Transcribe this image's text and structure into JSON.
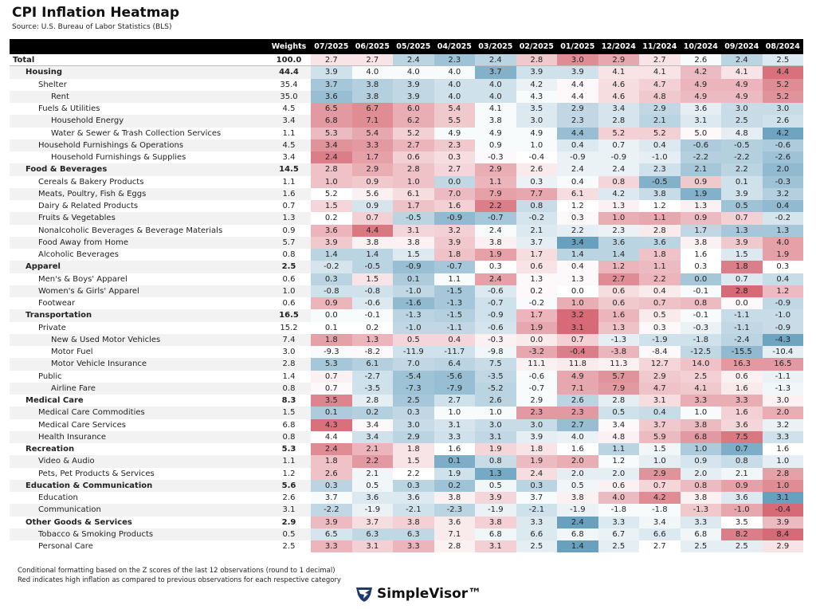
{
  "header": {
    "title": "CPI Inflation Heatmap",
    "source": "Source: U.S. Bureau of Labor Statistics (BLS)"
  },
  "table": {
    "columns": [
      "Weights",
      "07/2025",
      "06/2025",
      "05/2025",
      "04/2025",
      "03/2025",
      "02/2025",
      "01/2025",
      "12/2024",
      "11/2024",
      "10/2024",
      "09/2024",
      "08/2024"
    ],
    "rows": [
      [
        "Total",
        "100.0",
        "2.7",
        "2.7",
        "2.4",
        "2.3",
        "2.4",
        "2.8",
        "3.0",
        "2.9",
        "2.7",
        "2.6",
        "2.4",
        "2.5"
      ],
      [
        "Housing",
        "44.4",
        "3.9",
        "4.0",
        "4.0",
        "4.0",
        "3.7",
        "3.9",
        "3.9",
        "4.1",
        "4.1",
        "4.2",
        "4.1",
        "4.4"
      ],
      [
        "Shelter",
        "35.4",
        "3.7",
        "3.8",
        "3.9",
        "4.0",
        "4.0",
        "4.2",
        "4.4",
        "4.6",
        "4.7",
        "4.9",
        "4.9",
        "5.2"
      ],
      [
        "Rent",
        "35.0",
        "3.6",
        "3.8",
        "3.9",
        "4.0",
        "4.0",
        "4.3",
        "4.4",
        "4.6",
        "4.8",
        "4.9",
        "4.9",
        "5.2"
      ],
      [
        "Fuels & Utilities",
        "4.5",
        "6.5",
        "6.7",
        "6.0",
        "5.4",
        "4.1",
        "3.5",
        "2.9",
        "3.4",
        "2.9",
        "3.6",
        "3.0",
        "3.0"
      ],
      [
        "Household Energy",
        "3.4",
        "6.8",
        "7.1",
        "6.2",
        "5.5",
        "3.8",
        "3.0",
        "2.3",
        "2.8",
        "2.1",
        "3.1",
        "2.5",
        "2.6"
      ],
      [
        "Water & Sewer & Trash Collection Services",
        "1.1",
        "5.3",
        "5.4",
        "5.2",
        "4.9",
        "4.9",
        "4.9",
        "4.4",
        "5.2",
        "5.2",
        "5.0",
        "4.8",
        "4.2"
      ],
      [
        "Household Furnishings & Operations",
        "4.5",
        "3.4",
        "3.3",
        "2.7",
        "2.3",
        "0.9",
        "1.0",
        "0.4",
        "0.7",
        "0.4",
        "-0.6",
        "-0.5",
        "-0.6"
      ],
      [
        "Household Furnishings & Supplies",
        "3.4",
        "2.4",
        "1.7",
        "0.6",
        "0.3",
        "-0.3",
        "-0.4",
        "-0.9",
        "-0.9",
        "-1.0",
        "-2.2",
        "-2.2",
        "-2.6"
      ],
      [
        "Food & Beverages",
        "14.5",
        "2.8",
        "2.9",
        "2.8",
        "2.7",
        "2.9",
        "2.6",
        "2.4",
        "2.4",
        "2.3",
        "2.1",
        "2.2",
        "2.0"
      ],
      [
        "Cereals & Bakery Products",
        "1.1",
        "1.0",
        "0.9",
        "1.0",
        "0.0",
        "1.1",
        "0.3",
        "0.4",
        "0.8",
        "-0.5",
        "0.9",
        "0.1",
        "-0.3"
      ],
      [
        "Meats, Poultry, Fish & Eggs",
        "1.6",
        "5.2",
        "5.6",
        "6.1",
        "7.0",
        "7.9",
        "7.7",
        "6.1",
        "4.2",
        "3.8",
        "1.9",
        "3.9",
        "3.2"
      ],
      [
        "Dairy & Related Products",
        "0.7",
        "1.5",
        "0.9",
        "1.7",
        "1.6",
        "2.2",
        "0.8",
        "1.2",
        "1.3",
        "1.2",
        "1.3",
        "0.5",
        "0.4"
      ],
      [
        "Fruits & Vegetables",
        "1.3",
        "0.2",
        "0.7",
        "-0.5",
        "-0.9",
        "-0.7",
        "-0.2",
        "0.3",
        "1.0",
        "1.1",
        "0.9",
        "0.7",
        "-0.2"
      ],
      [
        "Nonalcoholic Beverages & Beverage Materials",
        "0.9",
        "3.6",
        "4.4",
        "3.1",
        "3.2",
        "2.4",
        "2.1",
        "2.2",
        "2.3",
        "2.8",
        "1.7",
        "1.3",
        "1.3"
      ],
      [
        "Food Away from Home",
        "5.7",
        "3.9",
        "3.8",
        "3.8",
        "3.9",
        "3.8",
        "3.7",
        "3.4",
        "3.6",
        "3.6",
        "3.8",
        "3.9",
        "4.0"
      ],
      [
        "Alcoholic Beverages",
        "0.8",
        "1.4",
        "1.4",
        "1.5",
        "1.8",
        "1.9",
        "1.7",
        "1.4",
        "1.4",
        "1.8",
        "1.6",
        "1.5",
        "1.9"
      ],
      [
        "Apparel",
        "2.5",
        "-0.2",
        "-0.5",
        "-0.9",
        "-0.7",
        "0.3",
        "0.6",
        "0.4",
        "1.2",
        "1.1",
        "0.3",
        "1.8",
        "0.3"
      ],
      [
        "Men's & Boys' Apparel",
        "0.6",
        "0.3",
        "1.5",
        "0.1",
        "1.1",
        "2.4",
        "1.3",
        "1.3",
        "2.7",
        "2.2",
        "0.0",
        "0.7",
        "0.4"
      ],
      [
        "Women's & Girls' Apparel",
        "1.0",
        "-0.8",
        "-0.8",
        "-1.0",
        "-1.5",
        "-0.6",
        "0.2",
        "0.0",
        "0.6",
        "0.4",
        "-0.1",
        "2.8",
        "1.2"
      ],
      [
        "Footwear",
        "0.6",
        "0.9",
        "-0.6",
        "-1.6",
        "-1.3",
        "-0.7",
        "-0.2",
        "1.0",
        "0.6",
        "0.7",
        "0.8",
        "0.0",
        "-0.9"
      ],
      [
        "Transportation",
        "16.5",
        "0.0",
        "-0.1",
        "-1.3",
        "-1.5",
        "-0.9",
        "1.7",
        "3.2",
        "1.6",
        "0.5",
        "-0.1",
        "-1.1",
        "-1.0"
      ],
      [
        "Private",
        "15.2",
        "0.1",
        "0.2",
        "-1.0",
        "-1.1",
        "-0.6",
        "1.9",
        "3.1",
        "1.3",
        "0.3",
        "-0.3",
        "-1.1",
        "-0.9"
      ],
      [
        "New & Used Motor Vehicles",
        "7.4",
        "1.8",
        "1.3",
        "0.5",
        "0.4",
        "-0.3",
        "0.0",
        "0.7",
        "-1.3",
        "-1.9",
        "-1.8",
        "-2.4",
        "-4.3"
      ],
      [
        "Motor Fuel",
        "3.0",
        "-9.3",
        "-8.2",
        "-11.9",
        "-11.7",
        "-9.8",
        "-3.2",
        "-0.4",
        "-3.8",
        "-8.4",
        "-12.5",
        "-15.5",
        "-10.4"
      ],
      [
        "Motor Vehicle Insurance",
        "2.8",
        "5.3",
        "6.1",
        "7.0",
        "6.4",
        "7.5",
        "11.1",
        "11.8",
        "11.3",
        "12.7",
        "14.0",
        "16.3",
        "16.5"
      ],
      [
        "Public",
        "1.4",
        "0.7",
        "-2.7",
        "-5.4",
        "-5.6",
        "-3.5",
        "-0.6",
        "4.9",
        "5.7",
        "2.9",
        "2.5",
        "0.6",
        "-1.1"
      ],
      [
        "Airline Fare",
        "0.8",
        "0.7",
        "-3.5",
        "-7.3",
        "-7.9",
        "-5.2",
        "-0.7",
        "7.1",
        "7.9",
        "4.7",
        "4.1",
        "1.6",
        "-1.3"
      ],
      [
        "Medical Care",
        "8.3",
        "3.5",
        "2.8",
        "2.5",
        "2.7",
        "2.6",
        "2.9",
        "2.6",
        "2.8",
        "3.1",
        "3.3",
        "3.3",
        "3.0"
      ],
      [
        "Medical Care Commodities",
        "1.5",
        "0.1",
        "0.2",
        "0.3",
        "1.0",
        "1.0",
        "2.3",
        "2.3",
        "0.5",
        "0.4",
        "1.0",
        "1.6",
        "2.0"
      ],
      [
        "Medical Care Services",
        "6.8",
        "4.3",
        "3.4",
        "3.0",
        "3.1",
        "3.0",
        "3.0",
        "2.7",
        "3.4",
        "3.7",
        "3.8",
        "3.6",
        "3.2"
      ],
      [
        "Health Insurance",
        "0.8",
        "4.4",
        "3.4",
        "2.9",
        "3.3",
        "3.1",
        "3.9",
        "4.0",
        "4.8",
        "5.9",
        "6.8",
        "7.5",
        "3.3"
      ],
      [
        "Recreation",
        "5.3",
        "2.4",
        "2.1",
        "1.8",
        "1.6",
        "1.9",
        "1.8",
        "1.6",
        "1.1",
        "1.5",
        "1.0",
        "0.7",
        "1.6"
      ],
      [
        "Video & Audio",
        "1.1",
        "1.8",
        "2.2",
        "1.5",
        "0.1",
        "0.8",
        "1.9",
        "2.0",
        "1.2",
        "1.0",
        "0.9",
        "0.8",
        "1.0"
      ],
      [
        "Pets, Pet Products & Services",
        "1.2",
        "2.6",
        "2.1",
        "2.2",
        "1.9",
        "1.3",
        "2.4",
        "2.0",
        "2.0",
        "2.9",
        "2.0",
        "2.1",
        "2.8"
      ],
      [
        "Education & Communication",
        "5.6",
        "0.3",
        "0.5",
        "0.3",
        "0.2",
        "0.5",
        "0.3",
        "0.5",
        "0.6",
        "0.7",
        "0.8",
        "0.9",
        "1.0"
      ],
      [
        "Education",
        "2.6",
        "3.7",
        "3.6",
        "3.6",
        "3.8",
        "3.9",
        "3.7",
        "3.8",
        "4.0",
        "4.2",
        "3.8",
        "3.6",
        "3.1"
      ],
      [
        "Communication",
        "3.1",
        "-2.2",
        "-1.9",
        "-2.1",
        "-2.3",
        "-1.9",
        "-2.1",
        "-1.9",
        "-1.8",
        "-1.8",
        "-1.3",
        "-1.0",
        "-0.4"
      ],
      [
        "Other Goods & Services",
        "2.9",
        "3.9",
        "3.7",
        "3.8",
        "3.6",
        "3.8",
        "3.3",
        "2.4",
        "3.3",
        "3.4",
        "3.3",
        "3.5",
        "3.9"
      ],
      [
        "Tobacco & Smoking Products",
        "0.5",
        "6.5",
        "6.3",
        "6.3",
        "7.1",
        "6.8",
        "6.6",
        "6.8",
        "6.7",
        "6.6",
        "6.8",
        "8.2",
        "8.4"
      ],
      [
        "Personal Care",
        "2.5",
        "3.3",
        "3.1",
        "3.3",
        "2.8",
        "3.1",
        "2.5",
        "1.4",
        "2.5",
        "2.7",
        "2.5",
        "2.5",
        "2.9"
      ]
    ]
  },
  "footer": {
    "notes": [
      "Conditional formatting based on the Z scores of the last 12 observations (round to 1 decimal)",
      "Red indicates high inflation as compared to previous observations for each respective category"
    ],
    "logo": "SimpleVisor™"
  }
}
